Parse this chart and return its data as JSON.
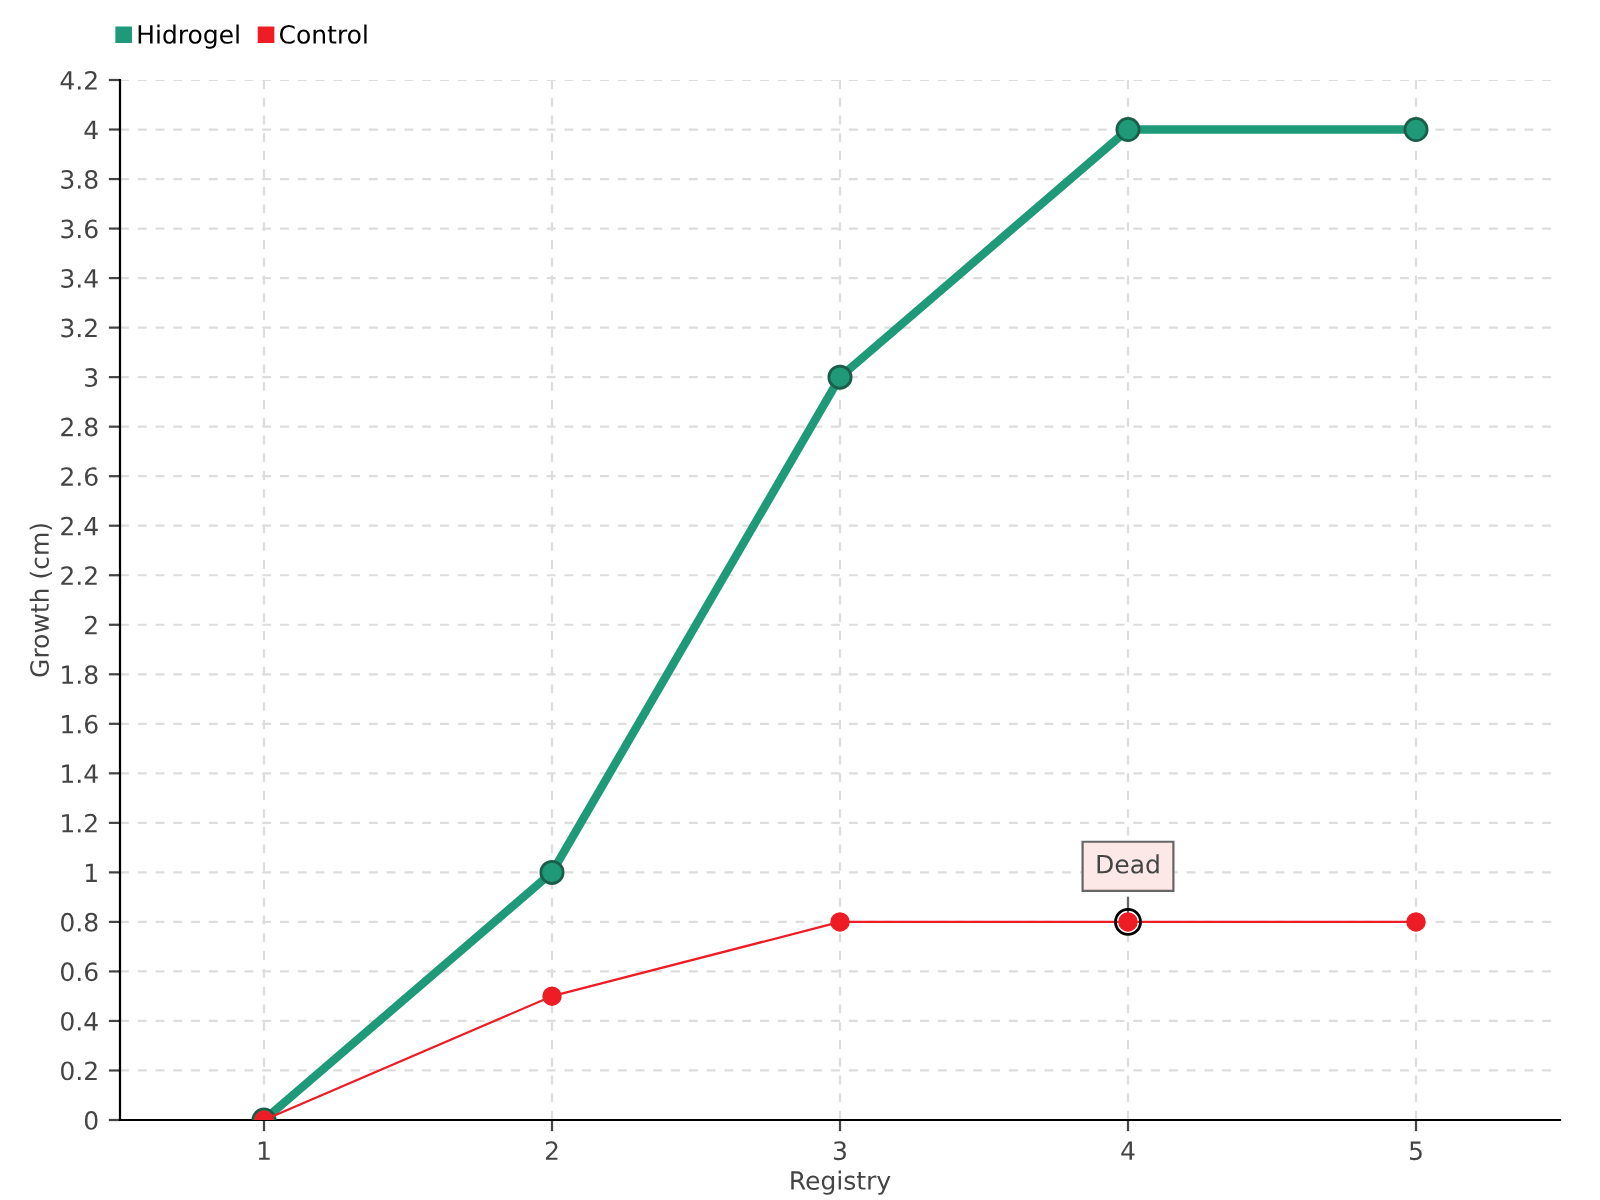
{
  "chart_data": {
    "type": "line",
    "xlabel": "Registry",
    "ylabel": "Growth (cm)",
    "x": [
      1,
      2,
      3,
      4,
      5
    ],
    "series": [
      {
        "name": "Hidrogel",
        "color": "#1f9a78",
        "values": [
          0,
          1,
          3,
          4,
          4
        ]
      },
      {
        "name": "Control",
        "color": "#ee1c25",
        "values": [
          0,
          0.5,
          0.8,
          0.8,
          0.8
        ]
      }
    ],
    "annotations": [
      {
        "text": "Dead",
        "x": 4,
        "y": 0.8
      }
    ],
    "xlim": [
      0.5,
      5.5
    ],
    "xticks": [
      1,
      2,
      3,
      4,
      5
    ],
    "ylim": [
      0,
      4.2
    ],
    "yticks": [
      0,
      0.2,
      0.4,
      0.6,
      0.8,
      1,
      1.2,
      1.4,
      1.6,
      1.8,
      2,
      2.2,
      2.4,
      2.6,
      2.8,
      3,
      3.2,
      3.4,
      3.6,
      3.8,
      4,
      4.2
    ],
    "grid": true,
    "legend": "top left",
    "marker": "circle",
    "line_style": "solid"
  }
}
